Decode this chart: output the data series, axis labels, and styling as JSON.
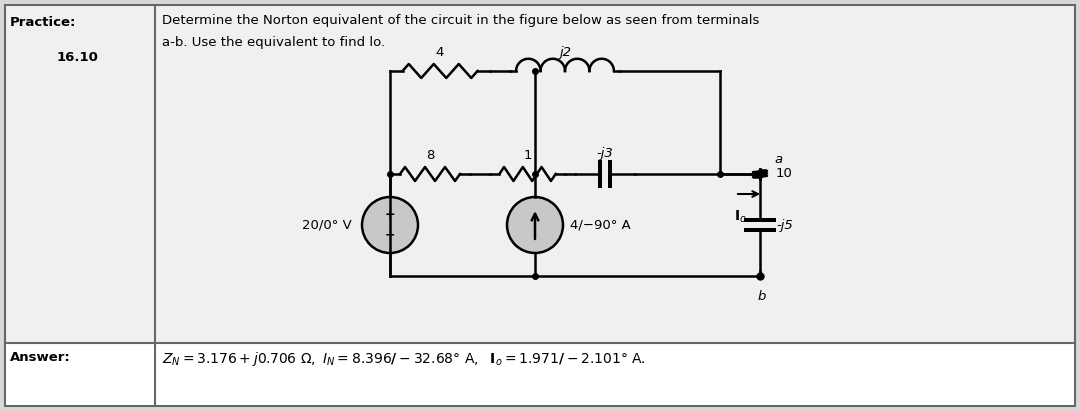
{
  "title_label": "Practice:",
  "practice_number": "16.10",
  "problem_text": "Determine the Norton equivalent of the circuit in the figure below as seen from terminals",
  "problem_text2": "a-b. Use the equivalent to find lo.",
  "answer_label": "Answer:",
  "bg_color": "#d8d8d8",
  "inner_bg": "#f0f0f0",
  "white_bg": "#ffffff",
  "resistor_4": "4",
  "inductor_j2": "j2",
  "resistor_8": "8",
  "resistor_1": "1",
  "capacitor_j3": "-j3",
  "resistor_10": "10",
  "capacitor_j5": "-j5",
  "voltage_src": "20/0° V",
  "current_src": "4/−90° A",
  "terminal_a": "a",
  "terminal_b": "b",
  "current_lo": "I",
  "current_lo_sub": "o"
}
